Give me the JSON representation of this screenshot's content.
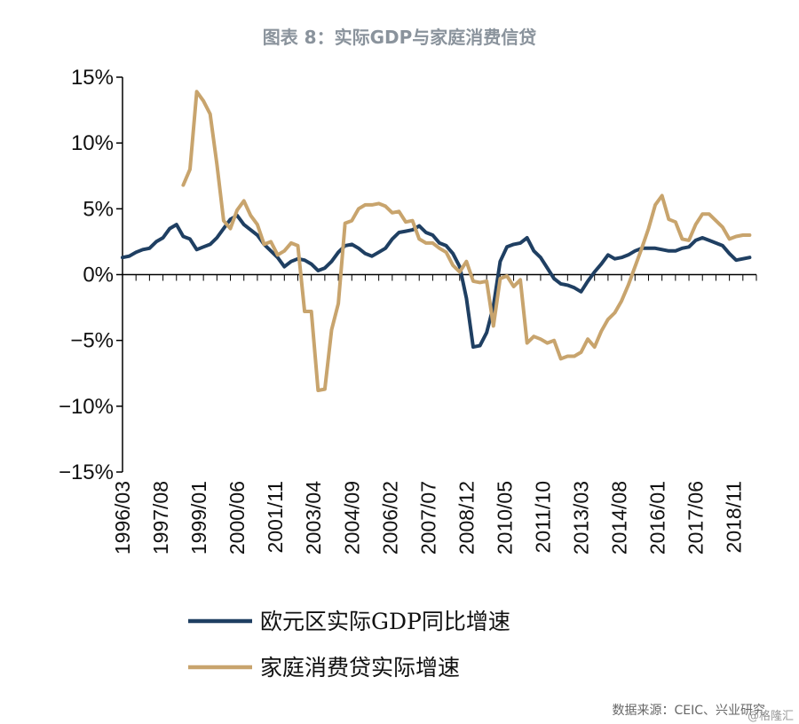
{
  "title": "图表 8：实际GDP与家庭消费信贷",
  "source": "数据来源：CEIC、兴业研究",
  "watermark": "@格隆汇",
  "chart_data": {
    "type": "line",
    "title": "图表 8：实际GDP与家庭消费信贷",
    "xlabel": "",
    "ylabel": "",
    "ylim": [
      -15,
      15
    ],
    "ytick_values": [
      -15,
      -10,
      -5,
      0,
      5,
      10,
      15
    ],
    "ytick_labels": [
      "−15%",
      "−10%",
      "−5%",
      "0%",
      "5%",
      "10%",
      "15%"
    ],
    "xlim": [
      "1996/03",
      "2019/09"
    ],
    "xtick_labels": [
      "1996/03",
      "1997/08",
      "1999/01",
      "2000/06",
      "2001/11",
      "2003/04",
      "2004/09",
      "2006/02",
      "2007/07",
      "2008/12",
      "2010/05",
      "2011/10",
      "2013/03",
      "2014/08",
      "2016/01",
      "2017/06",
      "2018/11"
    ],
    "grid": false,
    "legend_position": "bottom",
    "series": [
      {
        "name": "欧元区实际GDP同比增速",
        "color": "#1f3f62",
        "x": [
          "1996/03",
          "1996/06",
          "1996/09",
          "1996/12",
          "1997/03",
          "1997/06",
          "1997/09",
          "1997/12",
          "1998/03",
          "1998/06",
          "1998/09",
          "1998/12",
          "1999/03",
          "1999/06",
          "1999/09",
          "1999/12",
          "2000/03",
          "2000/06",
          "2000/09",
          "2000/12",
          "2001/03",
          "2001/06",
          "2001/09",
          "2001/12",
          "2002/03",
          "2002/06",
          "2002/09",
          "2002/12",
          "2003/03",
          "2003/06",
          "2003/09",
          "2003/12",
          "2004/03",
          "2004/06",
          "2004/09",
          "2004/12",
          "2005/03",
          "2005/06",
          "2005/09",
          "2005/12",
          "2006/03",
          "2006/06",
          "2006/09",
          "2006/12",
          "2007/03",
          "2007/06",
          "2007/09",
          "2007/12",
          "2008/03",
          "2008/06",
          "2008/09",
          "2008/12",
          "2009/03",
          "2009/06",
          "2009/09",
          "2009/12",
          "2010/03",
          "2010/06",
          "2010/09",
          "2010/12",
          "2011/03",
          "2011/06",
          "2011/09",
          "2011/12",
          "2012/03",
          "2012/06",
          "2012/09",
          "2012/12",
          "2013/03",
          "2013/06",
          "2013/09",
          "2013/12",
          "2014/03",
          "2014/06",
          "2014/09",
          "2014/12",
          "2015/03",
          "2015/06",
          "2015/09",
          "2015/12",
          "2016/03",
          "2016/06",
          "2016/09",
          "2016/12",
          "2017/03",
          "2017/06",
          "2017/09",
          "2017/12",
          "2018/03",
          "2018/06",
          "2018/09",
          "2018/12",
          "2019/03",
          "2019/06"
        ],
        "values": [
          1.3,
          1.4,
          1.7,
          1.9,
          2.0,
          2.5,
          2.8,
          3.5,
          3.8,
          2.9,
          2.7,
          1.9,
          2.1,
          2.3,
          2.8,
          3.5,
          4.2,
          4.5,
          3.8,
          3.4,
          3.0,
          2.3,
          1.8,
          1.3,
          0.6,
          1.0,
          1.2,
          1.1,
          0.8,
          0.3,
          0.5,
          1.0,
          1.7,
          2.2,
          2.3,
          2.0,
          1.6,
          1.4,
          1.7,
          2.0,
          2.7,
          3.2,
          3.3,
          3.4,
          3.7,
          3.2,
          3.0,
          2.4,
          2.2,
          1.6,
          0.6,
          -1.8,
          -5.5,
          -5.4,
          -4.4,
          -2.4,
          1.0,
          2.1,
          2.3,
          2.4,
          2.8,
          1.8,
          1.3,
          0.5,
          -0.3,
          -0.7,
          -0.8,
          -1.0,
          -1.3,
          -0.5,
          0.2,
          0.8,
          1.5,
          1.2,
          1.3,
          1.5,
          1.8,
          2.0,
          2.0,
          2.0,
          1.9,
          1.8,
          1.8,
          2.0,
          2.1,
          2.6,
          2.8,
          2.6,
          2.4,
          2.2,
          1.6,
          1.1,
          1.2,
          1.3
        ]
      },
      {
        "name": "家庭消费贷实际增速",
        "color": "#c8a46d",
        "x": [
          "1998/06",
          "1998/09",
          "1998/12",
          "1999/03",
          "1999/06",
          "1999/09",
          "1999/12",
          "2000/03",
          "2000/06",
          "2000/09",
          "2000/12",
          "2001/03",
          "2001/06",
          "2001/09",
          "2001/12",
          "2002/03",
          "2002/06",
          "2002/09",
          "2002/12",
          "2003/03",
          "2003/06",
          "2003/09",
          "2003/12",
          "2004/03",
          "2004/06",
          "2004/09",
          "2004/12",
          "2005/03",
          "2005/06",
          "2005/09",
          "2005/12",
          "2006/03",
          "2006/06",
          "2006/09",
          "2006/12",
          "2007/03",
          "2007/06",
          "2007/09",
          "2007/12",
          "2008/03",
          "2008/06",
          "2008/09",
          "2008/12",
          "2009/03",
          "2009/06",
          "2009/09",
          "2009/12",
          "2010/03",
          "2010/06",
          "2010/09",
          "2010/12",
          "2011/03",
          "2011/06",
          "2011/09",
          "2011/12",
          "2012/03",
          "2012/06",
          "2012/09",
          "2012/12",
          "2013/03",
          "2013/06",
          "2013/09",
          "2013/12",
          "2014/03",
          "2014/06",
          "2014/09",
          "2014/12",
          "2015/03",
          "2015/06",
          "2015/09",
          "2015/12",
          "2016/03",
          "2016/06",
          "2016/09",
          "2016/12",
          "2017/03",
          "2017/06",
          "2017/09",
          "2017/12",
          "2018/03",
          "2018/06",
          "2018/09",
          "2018/12",
          "2019/03",
          "2019/06"
        ],
        "values": [
          6.8,
          8.0,
          13.9,
          13.2,
          12.2,
          8.4,
          4.1,
          3.5,
          4.9,
          5.6,
          4.5,
          3.8,
          2.3,
          2.5,
          1.5,
          1.8,
          2.4,
          2.2,
          -2.8,
          -2.8,
          -8.8,
          -8.7,
          -4.2,
          -2.2,
          3.9,
          4.1,
          5.0,
          5.3,
          5.3,
          5.4,
          5.2,
          4.7,
          4.8,
          4.0,
          4.1,
          2.7,
          2.4,
          2.4,
          2.0,
          1.7,
          0.7,
          0.2,
          1.0,
          -0.5,
          -0.6,
          -0.5,
          -3.9,
          -0.3,
          -0.1,
          -0.9,
          -0.4,
          -5.2,
          -4.7,
          -4.9,
          -5.2,
          -5.0,
          -6.4,
          -6.2,
          -6.2,
          -5.9,
          -4.9,
          -5.5,
          -4.3,
          -3.4,
          -2.9,
          -2.0,
          -0.8,
          0.6,
          2.0,
          3.5,
          5.3,
          6.0,
          4.2,
          4.0,
          2.7,
          2.6,
          3.8,
          4.6,
          4.6,
          4.1,
          3.6,
          2.7,
          2.9,
          3.0,
          3.0
        ]
      }
    ]
  }
}
